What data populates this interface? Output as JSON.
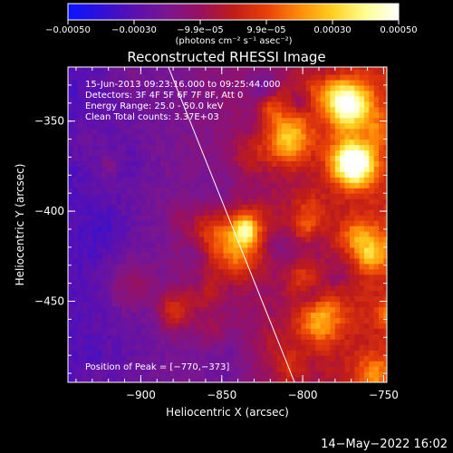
{
  "colorbar": {
    "colors": [
      "#0a14ff",
      "#3010d8",
      "#5a10b0",
      "#7a1690",
      "#981060",
      "#c01c18",
      "#e84008",
      "#ff8a08",
      "#ffd020",
      "#ffff90",
      "#ffffff"
    ],
    "tick_labels": [
      "−0.00050",
      "−0.00030",
      "−9.9e−05",
      "9.9e−05",
      "0.00030",
      "0.00050"
    ],
    "units": "(photons cm⁻² s⁻¹ asec⁻²)"
  },
  "chart_data": {
    "type": "heatmap",
    "title": "Reconstructed RHESSI Image",
    "xlabel": "Heliocentric X (arcsec)",
    "ylabel": "Heliocentric Y (arcsec)",
    "xlim": [
      -945,
      -748
    ],
    "ylim": [
      -495,
      -320
    ],
    "x_ticks": [
      -900,
      -850,
      -800,
      -750
    ],
    "y_ticks": [
      -350,
      -400,
      -450
    ],
    "x_tick_labels": [
      "−900",
      "−850",
      "−800",
      "−750"
    ],
    "y_tick_labels": [
      "−350",
      "−400",
      "−450"
    ],
    "colorbar_range": [
      -0.0005,
      0.0005
    ],
    "limb_line": {
      "x": [
        -883,
        -805
      ],
      "y": [
        -320,
        -495
      ]
    },
    "peak": {
      "x": -770,
      "y": -373
    },
    "annotations": [
      "15-Jun-2013 09:23:16.000 to 09:25:44.000",
      "Detectors: 3F 4F 5F 6F 7F 8F, Att 0",
      "Energy Range: 25.0 - 50.0 keV",
      "Clean    Total counts: 3.37E+03"
    ],
    "peak_label": "Position of Peak = [−770,−373]"
  },
  "footer": {
    "date": "14−May−2022 16:02"
  }
}
